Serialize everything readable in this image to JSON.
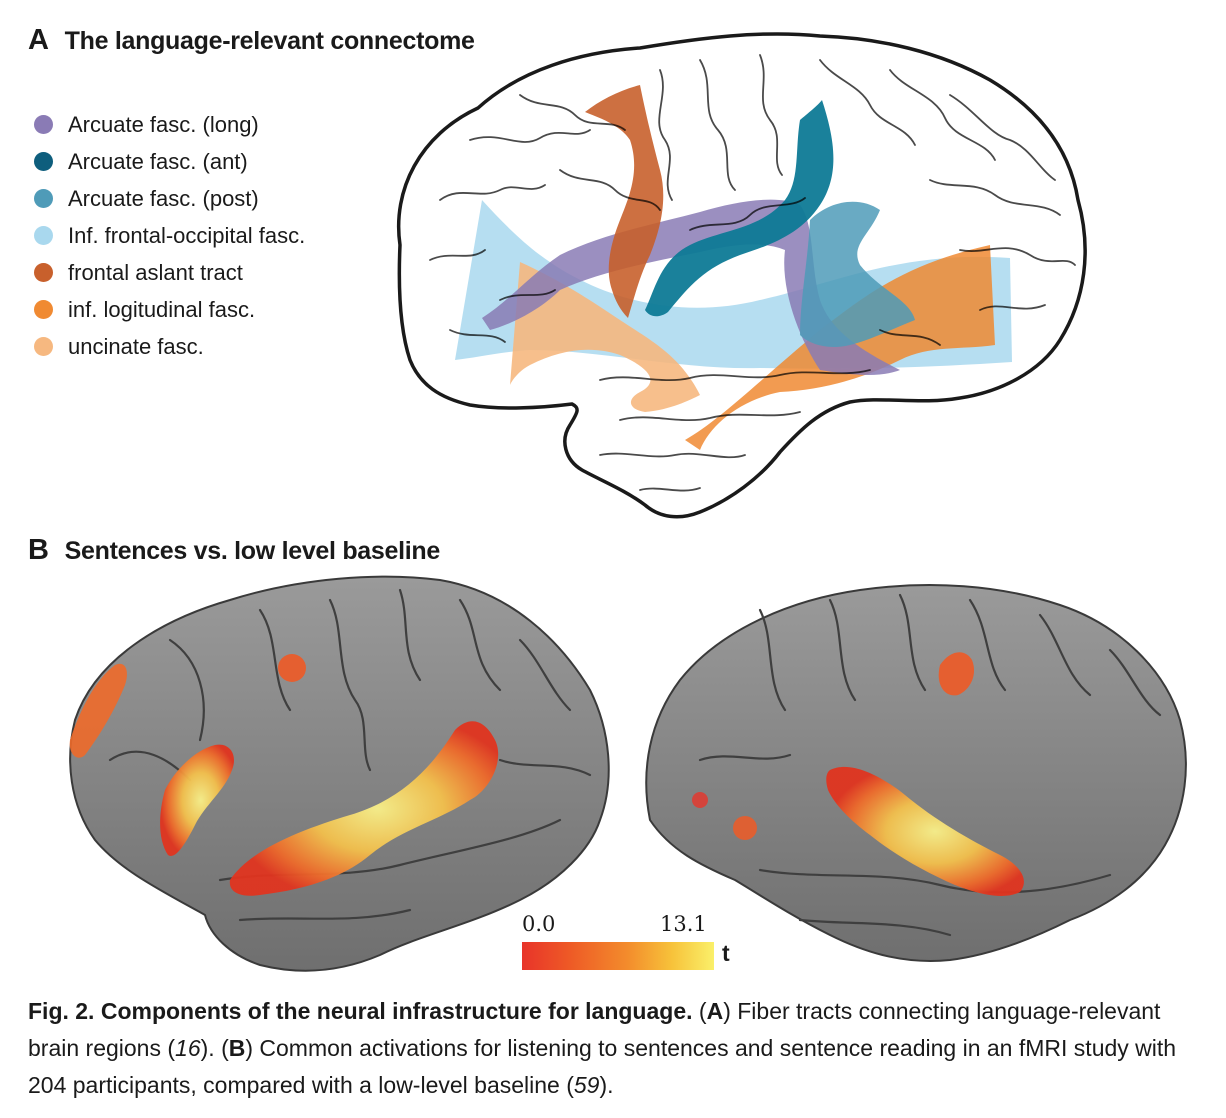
{
  "panel_a": {
    "letter": "A",
    "title": "The language-relevant connectome",
    "legend": [
      {
        "label": "Arcuate fasc. (long)",
        "color": "#8a7bb5"
      },
      {
        "label": "Arcuate fasc. (ant)",
        "color": "#0e5e7d"
      },
      {
        "label": "Arcuate fasc. (post)",
        "color": "#4f9bb8"
      },
      {
        "label": "Inf. frontal-occipital fasc.",
        "color": "#a9d8ee"
      },
      {
        "label": "frontal aslant tract",
        "color": "#c8602c"
      },
      {
        "label": "inf. logitudinal fasc.",
        "color": "#f08a32"
      },
      {
        "label": "uncinate fasc.",
        "color": "#f6b880"
      }
    ]
  },
  "panel_b": {
    "letter": "B",
    "title": "Sentences vs. low level baseline",
    "colorbar": {
      "min": "0.0",
      "max": "13.1",
      "unit": "t"
    }
  },
  "caption": {
    "fig_label": "Fig. 2. Components of the neural infrastructure for language.",
    "p1": " (",
    "a": "A",
    "p2": ") Fiber tracts connecting language-relevant brain regions (",
    "ref1": "16",
    "p3": "). (",
    "b": "B",
    "p4": ") Common activations for listening to sentences and sentence reading in an fMRI study with 204 participants, compared with a low-level baseline (",
    "ref2": "59",
    "p5": ")."
  }
}
